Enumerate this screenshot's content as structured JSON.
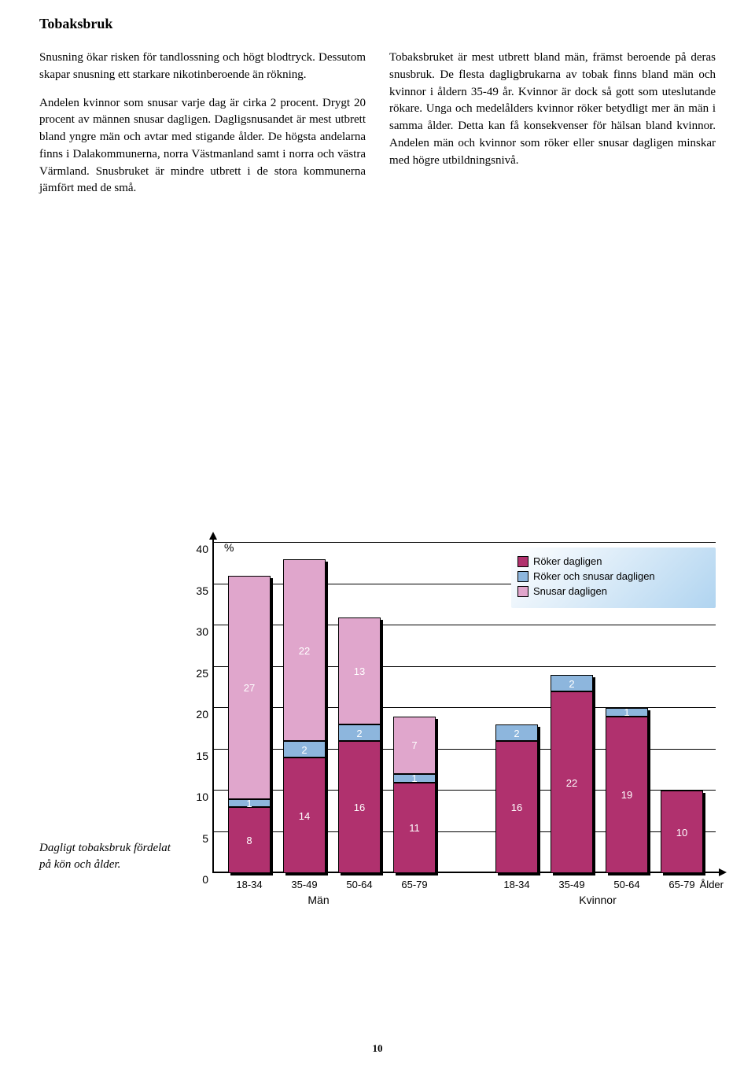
{
  "title": "Tobaksbruk",
  "col1": {
    "p1": "Snusning ökar risken för tandlossning och högt blodtryck. Dessutom skapar snusning ett starkare nikotinberoende än rökning.",
    "p2": "Andelen kvinnor som snusar varje dag är cirka 2 procent. Drygt 20 procent av männen snusar dagligen. Dagligsnusandet är mest utbrett bland yngre män och avtar med stigande ålder. De högsta andelarna finns i Dalakommunerna, norra Västmanland samt i norra och västra Värmland. Snusbruket är mindre utbrett i de stora kommunerna jämfört med de små."
  },
  "col2": {
    "p1": "Tobaksbruket är mest utbrett bland män, främst beroende på deras snusbruk. De flesta dagligbrukarna av tobak finns bland män och kvinnor i åldern 35-49 år. Kvinnor är dock så gott som uteslutande rökare. Unga och medelålders kvinnor röker betydligt mer än män i samma ålder. Detta kan få konsekvenser för hälsan bland kvinnor. Andelen män och kvinnor som röker eller snusar dagligen minskar med högre utbildningsnivå."
  },
  "caption": "Dagligt tobaksbruk fördelat på kön och ålder.",
  "page_number": "10",
  "chart": {
    "type": "stacked-bar",
    "y_unit": "%",
    "ylim": [
      0,
      40
    ],
    "yticks": [
      0,
      5,
      10,
      15,
      20,
      25,
      30,
      35,
      40
    ],
    "colors": {
      "roker": "#b0316e",
      "roker_snusar": "#8db6dd",
      "snusar": "#e0a6cc",
      "shadow": "#000000",
      "legend_bg_start": "#ffffff",
      "legend_bg_end": "#b0d4f0"
    },
    "legend": [
      {
        "label": "Röker dagligen",
        "color": "#b0316e"
      },
      {
        "label": "Röker och snusar dagligen",
        "color": "#8db6dd"
      },
      {
        "label": "Snusar dagligen",
        "color": "#e0a6cc"
      }
    ],
    "groups": [
      {
        "label": "Män",
        "x_label_offset": 95
      },
      {
        "label": "Kvinnor",
        "x_label_offset": 450
      }
    ],
    "bars": [
      {
        "x": "18-34",
        "roker": 8,
        "roker_snusar": 1,
        "snusar": 27,
        "pos": 20
      },
      {
        "x": "35-49",
        "roker": 14,
        "roker_snusar": 2,
        "snusar": 22,
        "pos": 90
      },
      {
        "x": "50-64",
        "roker": 16,
        "roker_snusar": 2,
        "snusar": 13,
        "pos": 160
      },
      {
        "x": "65-79",
        "roker": 11,
        "roker_snusar": 1,
        "snusar": 7,
        "pos": 230
      },
      {
        "x": "18-34",
        "roker": 16,
        "roker_snusar": 2,
        "snusar": 0,
        "pos": 360
      },
      {
        "x": "35-49",
        "roker": 22,
        "roker_snusar": 2,
        "snusar": 0,
        "pos": 430
      },
      {
        "x": "50-64",
        "roker": 19,
        "roker_snusar": 1,
        "snusar": 0,
        "pos": 500
      },
      {
        "x": "65-79",
        "roker": 10,
        "roker_snusar": 0,
        "snusar": 0,
        "pos": 570
      }
    ],
    "x_axis_end": "Ålder"
  }
}
